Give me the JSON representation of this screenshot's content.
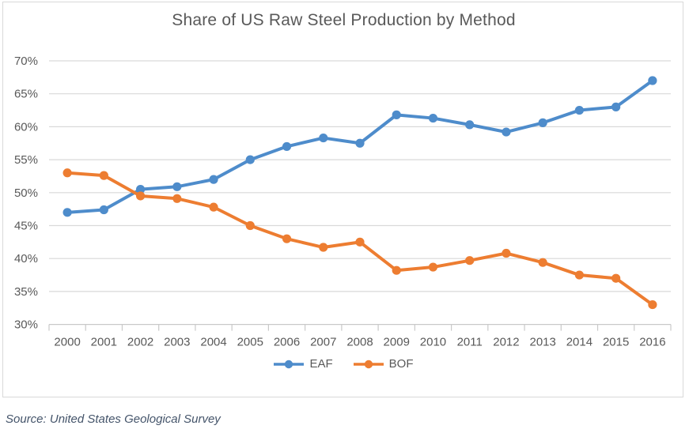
{
  "title": "Share of US Raw Steel Production by Method",
  "source_note": "Source: United States Geological Survey",
  "colors": {
    "eaf_line": "#4e8ccb",
    "bof_line": "#ed7d31",
    "gridline": "#d9d9d9",
    "axis_line": "#c9c9c9",
    "tick_mark": "#c9c9c9",
    "axis_text": "#595959",
    "title_text": "#595959",
    "source_text": "#44546a",
    "frame_border": "#d9d9d9",
    "background": "#ffffff"
  },
  "chart_data": {
    "type": "line",
    "title": "Share of US Raw Steel Production by Method",
    "categories": [
      "2000",
      "2001",
      "2002",
      "2003",
      "2004",
      "2005",
      "2006",
      "2007",
      "2008",
      "2009",
      "2010",
      "2011",
      "2012",
      "2013",
      "2014",
      "2015",
      "2016"
    ],
    "series": [
      {
        "name": "EAF",
        "color": "#4e8ccb",
        "values": [
          47.0,
          47.4,
          50.5,
          50.9,
          52.0,
          55.0,
          57.0,
          58.3,
          57.5,
          61.8,
          61.3,
          60.3,
          59.2,
          60.6,
          62.5,
          63.0,
          67.0
        ]
      },
      {
        "name": "BOF",
        "color": "#ed7d31",
        "values": [
          53.0,
          52.6,
          49.5,
          49.1,
          47.8,
          45.0,
          43.0,
          41.7,
          42.5,
          38.2,
          38.7,
          39.7,
          40.8,
          39.4,
          37.5,
          37.0,
          33.0
        ]
      }
    ],
    "ylim": [
      30,
      70
    ],
    "ytick_step": 5,
    "ytick_labels": [
      "30%",
      "35%",
      "40%",
      "45%",
      "50%",
      "55%",
      "60%",
      "65%",
      "70%"
    ],
    "ylabel": "",
    "xlabel": "",
    "grid": true,
    "legend_position": "bottom",
    "marker": "circle"
  }
}
